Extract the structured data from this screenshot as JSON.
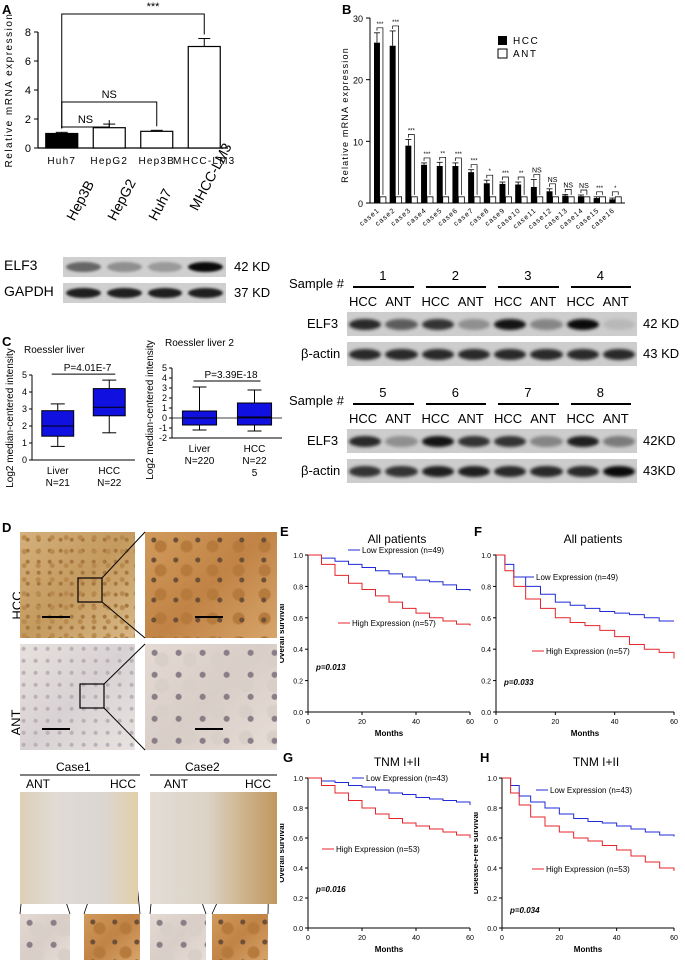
{
  "panels": {
    "a": "A",
    "b": "B",
    "c": "C",
    "d": "D",
    "e": "E",
    "f": "F",
    "g": "G",
    "h": "H"
  },
  "panelA": {
    "chart_data": {
      "type": "bar",
      "categories": [
        "Huh7",
        "HepG2",
        "Hep3B",
        "MHCC-LM3"
      ],
      "values": [
        1.0,
        1.4,
        1.15,
        7.0
      ],
      "errors": [
        0.08,
        0.25,
        0.07,
        0.55
      ],
      "ylabel": "Relative mRNA expression",
      "ylim": [
        0,
        8
      ],
      "yticks": [
        "0",
        "2",
        "4",
        "6",
        "8"
      ],
      "brackets": [
        {
          "from": "Huh7",
          "to": "MHCC-LM3",
          "label": "***"
        },
        {
          "from": "Huh7",
          "to": "Hep3B",
          "label": "NS"
        },
        {
          "from": "Huh7",
          "to": "HepG2",
          "label": "NS"
        }
      ]
    }
  },
  "panelB": {
    "chart_data": {
      "type": "bar",
      "categories": [
        "case1",
        "case2",
        "case3",
        "case4",
        "case5",
        "case6",
        "case7",
        "case8",
        "case9",
        "case10",
        "case11",
        "case12",
        "case13",
        "case14",
        "case15",
        "case16"
      ],
      "series": [
        {
          "name": "HCC",
          "values": [
            26,
            25.5,
            9.3,
            6.2,
            6.0,
            6.0,
            5.0,
            3.2,
            3.1,
            3.0,
            2.6,
            1.9,
            1.2,
            1.1,
            0.8,
            0.6
          ]
        },
        {
          "name": "ANT",
          "values": [
            1.0,
            1.0,
            1.0,
            1.0,
            1.0,
            1.0,
            1.0,
            1.0,
            1.0,
            1.0,
            1.0,
            1.0,
            1.0,
            1.0,
            1.0,
            1.0
          ]
        }
      ],
      "hcc_errors": [
        1.6,
        2.4,
        1.0,
        0.3,
        0.6,
        0.5,
        0.4,
        0.5,
        0.3,
        0.4,
        1.2,
        0.4,
        0.2,
        0.2,
        0.2,
        0.2
      ],
      "sig": [
        "***",
        "***",
        "***",
        "***",
        "**",
        "***",
        "***",
        "*",
        "***",
        "**",
        "NS",
        "NS",
        "NS",
        "NS",
        "***",
        "*"
      ],
      "ylabel": "Relative mRNA expression",
      "ylim": [
        0,
        30
      ],
      "yticks": [
        "0",
        "10",
        "20",
        "30"
      ],
      "legend": [
        "HCC",
        "ANT"
      ]
    }
  },
  "blotTop": {
    "lanes": [
      "Hep3B",
      "HepG2",
      "Huh7",
      "MHCC-LM3"
    ],
    "rows": [
      {
        "name": "ELF3",
        "kd": "42 KD",
        "levels": [
          0.55,
          0.35,
          0.3,
          1.0
        ]
      },
      {
        "name": "GAPDH",
        "kd": "37 KD",
        "levels": [
          0.9,
          0.9,
          0.9,
          0.9
        ]
      }
    ]
  },
  "blotRight": {
    "sample_label": "Sample #",
    "top": {
      "samples": [
        "1",
        "2",
        "3",
        "4"
      ],
      "lanes": [
        "HCC",
        "ANT",
        "HCC",
        "ANT",
        "HCC",
        "ANT",
        "HCC",
        "ANT"
      ],
      "rows": [
        {
          "name": "ELF3",
          "kd": "42 KD",
          "levels": [
            0.85,
            0.6,
            0.8,
            0.35,
            0.95,
            0.4,
            1.0,
            0.15
          ]
        },
        {
          "name": "β-actin",
          "kd": "43 KD",
          "levels": [
            0.85,
            0.85,
            0.85,
            0.85,
            0.85,
            0.85,
            0.85,
            0.85
          ]
        }
      ]
    },
    "bottom": {
      "samples": [
        "5",
        "6",
        "7",
        "8"
      ],
      "lanes": [
        "HCC",
        "ANT",
        "HCC",
        "ANT",
        "HCC",
        "ANT",
        "HCC",
        "ANT"
      ],
      "rows": [
        {
          "name": "ELF3",
          "kd": "42KD",
          "levels": [
            0.85,
            0.35,
            0.95,
            0.8,
            0.8,
            0.4,
            0.9,
            0.45
          ]
        },
        {
          "name": "β-actin",
          "kd": "43KD",
          "levels": [
            0.8,
            0.8,
            0.9,
            0.9,
            0.85,
            0.85,
            0.85,
            1.0
          ]
        }
      ]
    }
  },
  "panelC": {
    "ylabel": "Log2 median-centered intensity",
    "left": {
      "title": "Roessler liver",
      "pvalue": "P=4.01E-7",
      "groups": [
        {
          "name": "Liver",
          "n": "N=21"
        },
        {
          "name": "HCC",
          "n": "N=22"
        }
      ],
      "chart_data": {
        "type": "box",
        "categories": [
          "Liver N=21",
          "HCC N=22"
        ],
        "boxes": [
          {
            "min": 0.8,
            "q1": 1.4,
            "median": 2.0,
            "q3": 2.9,
            "max": 3.3
          },
          {
            "min": 1.6,
            "q1": 2.6,
            "median": 3.1,
            "q3": 4.2,
            "max": 4.7
          }
        ],
        "ylim": [
          0,
          5
        ],
        "yticks": [
          "0",
          "1",
          "2",
          "3",
          "4",
          "5"
        ]
      }
    },
    "right": {
      "title": "Roessler liver 2",
      "pvalue": "P=3.39E-18",
      "groups": [
        {
          "name": "Liver",
          "n": "N=220"
        },
        {
          "name": "HCC",
          "n": "N=22"
        },
        {
          "name": "",
          "n": "5"
        }
      ],
      "chart_data": {
        "type": "box",
        "categories": [
          "Liver N=220",
          "HCC N=225"
        ],
        "boxes": [
          {
            "min": -1.2,
            "q1": -0.7,
            "median": 0.0,
            "q3": 0.7,
            "max": 3.1
          },
          {
            "min": -1.3,
            "q1": -0.7,
            "median": 0.1,
            "q3": 1.5,
            "max": 2.8
          }
        ],
        "ylim": [
          -2,
          5
        ],
        "yticks": [
          "-2",
          "-1",
          "0",
          "1",
          "2",
          "3",
          "4",
          "5"
        ]
      }
    }
  },
  "panelD": {
    "rows": [
      "HCC",
      "ANT"
    ],
    "cases": [
      "Case1",
      "Case2"
    ],
    "case_labels": [
      "ANT",
      "HCC",
      "ANT",
      "HCC"
    ]
  },
  "km": [
    {
      "id": "E",
      "title": "All patients",
      "ylabel": "Overall survival",
      "xlabel": "Months",
      "low": "Low Expression (n=49)",
      "high": "High Expression (n=57)",
      "p": "p=0.013",
      "chart_data": {
        "type": "line",
        "xlim": [
          0,
          60
        ],
        "ylim": [
          0,
          1.0
        ],
        "xticks": [
          "0",
          "20",
          "40",
          "60"
        ],
        "yticks": [
          "0.0",
          "0.2",
          "0.4",
          "0.6",
          "0.8",
          "1.0"
        ],
        "series": [
          {
            "name": "Low Expression (n=49)",
            "x": [
              0,
              5,
              10,
              15,
              20,
              25,
              30,
              35,
              40,
              45,
              50,
              55,
              60
            ],
            "y": [
              1.0,
              0.98,
              0.96,
              0.94,
              0.92,
              0.9,
              0.88,
              0.86,
              0.84,
              0.83,
              0.81,
              0.78,
              0.77
            ]
          },
          {
            "name": "High Expression (n=57)",
            "x": [
              0,
              5,
              10,
              15,
              20,
              25,
              30,
              35,
              40,
              45,
              50,
              55,
              60
            ],
            "y": [
              1.0,
              0.94,
              0.87,
              0.82,
              0.78,
              0.74,
              0.7,
              0.66,
              0.63,
              0.6,
              0.58,
              0.56,
              0.55
            ]
          }
        ]
      }
    },
    {
      "id": "F",
      "title": "All patients",
      "ylabel": "Disease-Free survival",
      "xlabel": "Months",
      "low": "Low Expression (n=49)",
      "high": "High Expression (n=57)",
      "p": "p=0.033",
      "chart_data": {
        "type": "line",
        "xlim": [
          0,
          60
        ],
        "ylim": [
          0,
          1.0
        ],
        "xticks": [
          "0",
          "20",
          "40",
          "60"
        ],
        "yticks": [
          "0.0",
          "0.2",
          "0.4",
          "0.6",
          "0.8",
          "1.0"
        ],
        "series": [
          {
            "name": "Low Expression (n=49)",
            "x": [
              0,
              3,
              6,
              10,
              15,
              20,
              25,
              30,
              35,
              40,
              45,
              50,
              55,
              60
            ],
            "y": [
              1.0,
              0.94,
              0.86,
              0.8,
              0.75,
              0.7,
              0.68,
              0.66,
              0.64,
              0.63,
              0.62,
              0.6,
              0.58,
              0.58
            ]
          },
          {
            "name": "High Expression (n=57)",
            "x": [
              0,
              3,
              6,
              10,
              15,
              20,
              25,
              30,
              35,
              40,
              45,
              50,
              55,
              60
            ],
            "y": [
              1.0,
              0.9,
              0.8,
              0.72,
              0.66,
              0.6,
              0.57,
              0.55,
              0.52,
              0.48,
              0.43,
              0.4,
              0.38,
              0.34
            ]
          }
        ]
      }
    },
    {
      "id": "G",
      "title": "TNM I+II",
      "ylabel": "Overall survival",
      "xlabel": "Months",
      "low": "Low Expression (n=43)",
      "high": "High Expression (n=53)",
      "p": "p=0.016",
      "chart_data": {
        "type": "line",
        "xlim": [
          0,
          60
        ],
        "ylim": [
          0,
          1.0
        ],
        "xticks": [
          "0",
          "20",
          "40",
          "60"
        ],
        "yticks": [
          "0.0",
          "0.2",
          "0.4",
          "0.6",
          "0.8",
          "1.0"
        ],
        "series": [
          {
            "name": "Low Expression (n=43)",
            "x": [
              0,
              5,
              10,
              15,
              20,
              25,
              30,
              35,
              40,
              45,
              50,
              55,
              60
            ],
            "y": [
              1.0,
              0.98,
              0.97,
              0.95,
              0.94,
              0.92,
              0.9,
              0.89,
              0.87,
              0.86,
              0.85,
              0.84,
              0.82
            ]
          },
          {
            "name": "High Expression (n=53)",
            "x": [
              0,
              5,
              10,
              15,
              20,
              25,
              30,
              35,
              40,
              45,
              50,
              55,
              60
            ],
            "y": [
              1.0,
              0.95,
              0.9,
              0.85,
              0.8,
              0.76,
              0.73,
              0.7,
              0.68,
              0.66,
              0.64,
              0.62,
              0.6
            ]
          }
        ]
      }
    },
    {
      "id": "H",
      "title": "TNM I+II",
      "ylabel": "Disease-Free survival",
      "xlabel": "Months",
      "low": "Low Expression (n=43)",
      "high": "High Expression (n=53)",
      "p": "p=0.034",
      "chart_data": {
        "type": "line",
        "xlim": [
          0,
          60
        ],
        "ylim": [
          0,
          1.0
        ],
        "xticks": [
          "0",
          "20",
          "40",
          "60"
        ],
        "yticks": [
          "0.0",
          "0.2",
          "0.4",
          "0.6",
          "0.8",
          "1.0"
        ],
        "series": [
          {
            "name": "Low Expression (n=43)",
            "x": [
              0,
              3,
              6,
              10,
              15,
              20,
              25,
              30,
              35,
              40,
              45,
              50,
              55,
              60
            ],
            "y": [
              1.0,
              0.95,
              0.88,
              0.84,
              0.8,
              0.76,
              0.73,
              0.71,
              0.7,
              0.68,
              0.66,
              0.64,
              0.62,
              0.61
            ]
          },
          {
            "name": "High Expression (n=53)",
            "x": [
              0,
              3,
              6,
              10,
              15,
              20,
              25,
              30,
              35,
              40,
              45,
              50,
              55,
              60
            ],
            "y": [
              1.0,
              0.9,
              0.82,
              0.74,
              0.68,
              0.64,
              0.6,
              0.58,
              0.55,
              0.52,
              0.48,
              0.44,
              0.4,
              0.38
            ]
          }
        ]
      }
    }
  ],
  "colors": {
    "low": "#1f2bd6",
    "high": "#e4262a",
    "box": "#1010e0",
    "tissue_hcc": "#c9a066",
    "tissue_ant": "#e4ddd8"
  }
}
